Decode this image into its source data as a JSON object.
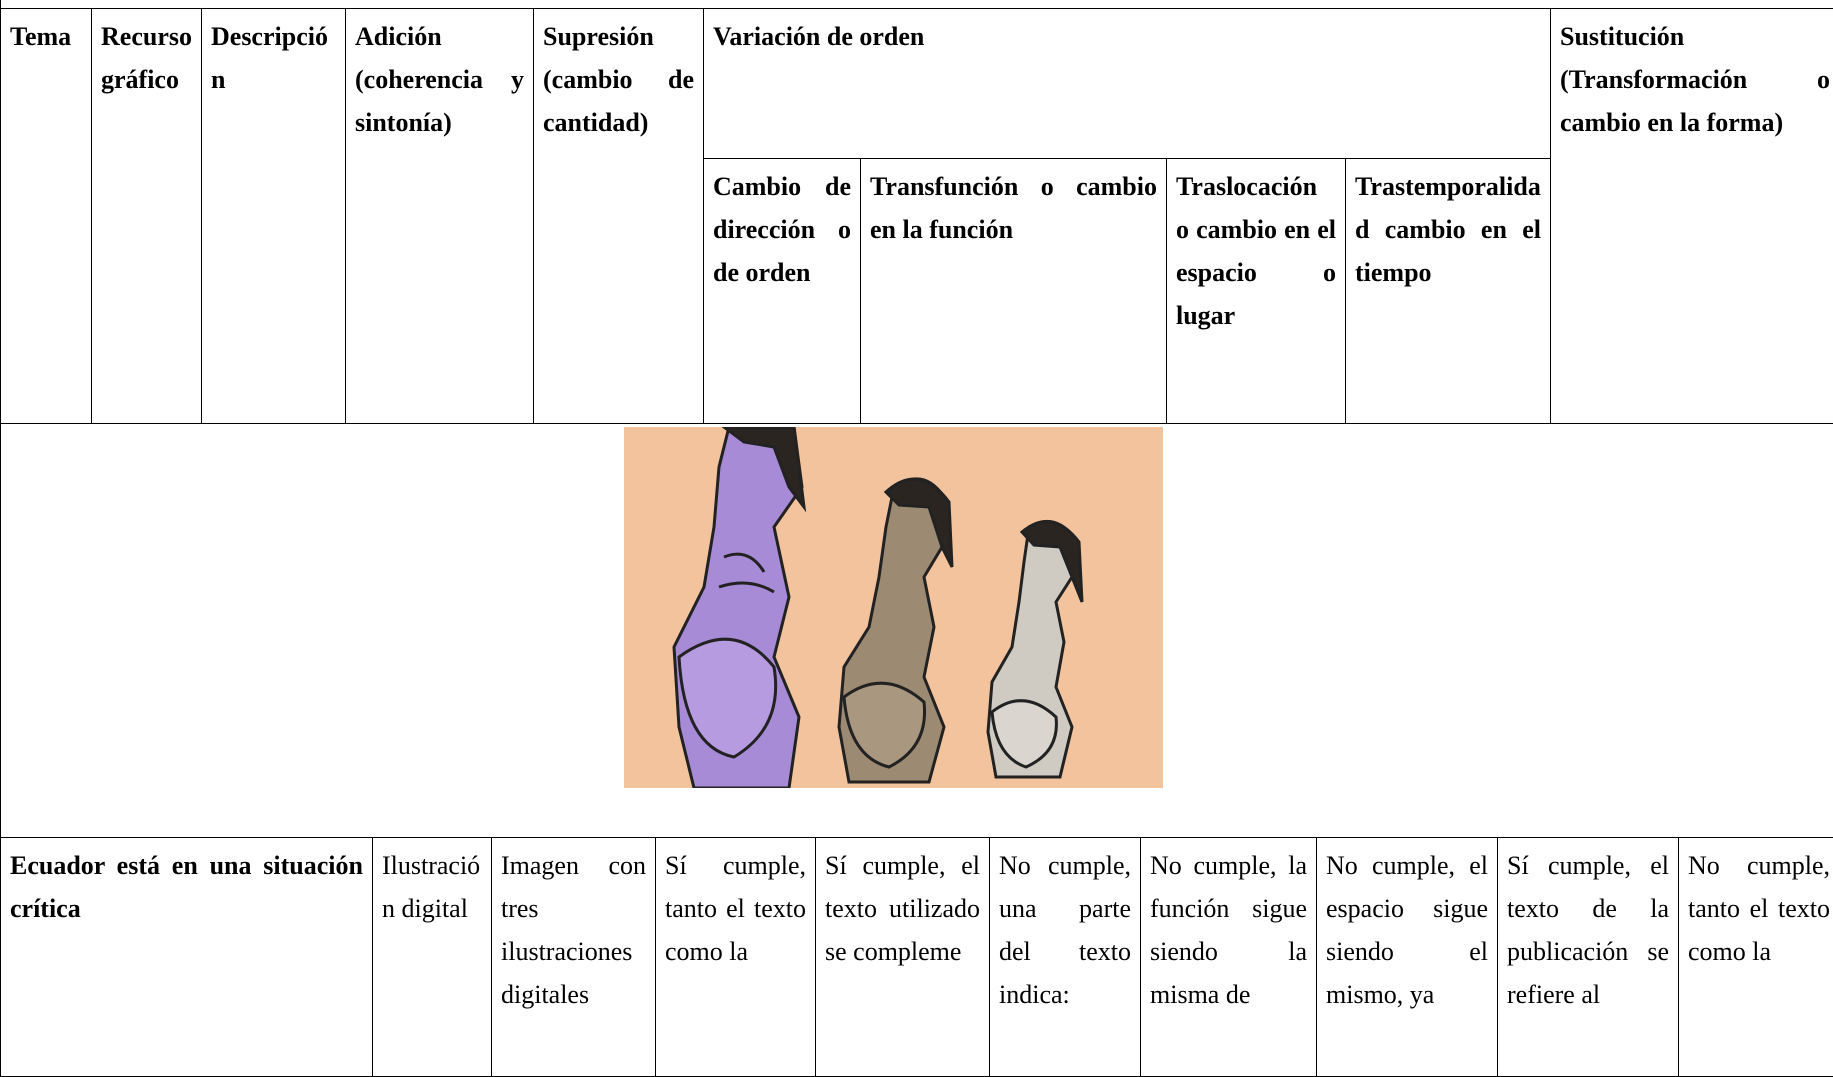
{
  "header": {
    "tema": "Tema",
    "recurso": "Recurso gráfico",
    "descripcion": "Descripción",
    "adicion": "Adición (coherencia y sintonía)",
    "supresion": "Supresión (cambio de cantidad)",
    "variacion": "Variación de orden",
    "subcolumns": [
      "Cambio de dirección o de orden",
      "Transfunción o cambio en la función",
      "Traslocación o cambio en el espacio o lugar",
      "Trastemporalidad cambio en el tiempo"
    ],
    "sustitucion": "Sustitución (Transformación o cambio en la forma)"
  },
  "rows": [
    {
      "cells": [
        "Ecuador está en una situación crítica",
        "Ilustración digital",
        "Imagen con tres ilustraciones digitales",
        "Sí cumple, tanto el texto como la",
        "Sí cumple, el texto utilizado se compleme",
        "No cumple, una parte del texto indica:",
        "No cumple, la función sigue siendo la misma de",
        "No cumple, el espacio sigue siendo el mismo, ya",
        "Sí cumple, el texto de la publicación se refiere al",
        "No cumple, tanto el texto como la"
      ]
    }
  ]
}
